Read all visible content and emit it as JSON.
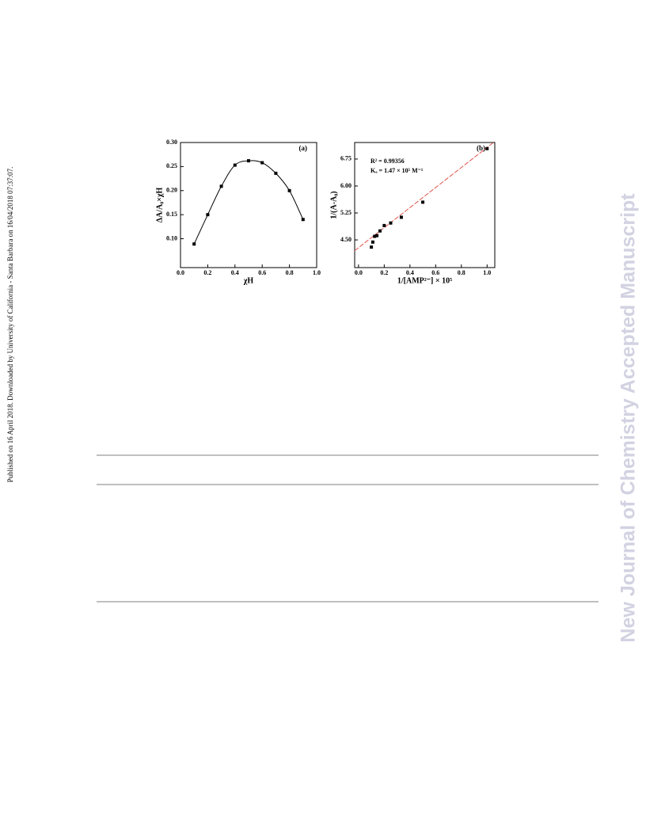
{
  "sidebar_left": "Published on 16 April 2018. Downloaded by University of California - Santa Barbara on 16/04/2018 07:37:07.",
  "sidebar_right": "New Journal of Chemistry Accepted Manuscript",
  "chart_data": [
    {
      "type": "scatter",
      "annotation": "(a)",
      "xlabel": "χH",
      "ylabel": "ΔA/A₀×χH",
      "xlim": [
        0,
        1.0
      ],
      "xticks": [
        {
          "value": 0,
          "label": "0.0"
        },
        0.2,
        0.4,
        0.6,
        0.8,
        {
          "value": 1,
          "label": "1.0"
        }
      ],
      "ylim": [
        0.04,
        0.3
      ],
      "yticks": [
        {
          "value": 0.1,
          "label": "0.10"
        },
        0.15,
        {
          "value": 0.2,
          "label": "0.20"
        },
        0.25,
        {
          "value": 0.3,
          "label": "0.30"
        }
      ],
      "series": [
        {
          "color": "#000000",
          "line": "smooth",
          "x": [
            0.1,
            0.2,
            0.3,
            0.4,
            0.5,
            0.6,
            0.7,
            0.8,
            0.9
          ],
          "values": [
            0.089,
            0.15,
            0.209,
            0.253,
            0.262,
            0.258,
            0.236,
            0.2,
            0.14
          ]
        }
      ]
    },
    {
      "type": "scatter",
      "annotation": "(b)",
      "xlabel": "1/[AMP²⁻] × 10⁵",
      "ylabel": "1/(A-A₀)",
      "notes": [
        "R² = 0.99356",
        "Kₐ = 1.47 × 10⁵ M⁻¹"
      ],
      "xlim": [
        -0.03,
        1.06
      ],
      "xticks": [
        {
          "value": 0,
          "label": "0.0"
        },
        0.2,
        0.4,
        0.6,
        0.8,
        {
          "value": 1,
          "label": "1.0"
        }
      ],
      "ylim": [
        3.73,
        7.21
      ],
      "yticks": [
        {
          "value": 4.5,
          "label": "4.50"
        },
        5.25,
        {
          "value": 6,
          "label": "6.00"
        },
        6.75
      ],
      "series": [
        {
          "color": "#000000",
          "x": [
            0.1,
            0.111,
            0.125,
            0.143,
            0.167,
            0.2,
            0.25,
            0.333,
            0.5,
            1.0
          ],
          "values": [
            4.3,
            4.44,
            4.6,
            4.62,
            4.75,
            4.9,
            4.97,
            5.13,
            5.55,
            7.04
          ]
        }
      ],
      "fit": {
        "color": "#e0524a",
        "x": [
          -0.03,
          1.06
        ],
        "values": [
          4.2,
          7.24
        ]
      }
    }
  ]
}
